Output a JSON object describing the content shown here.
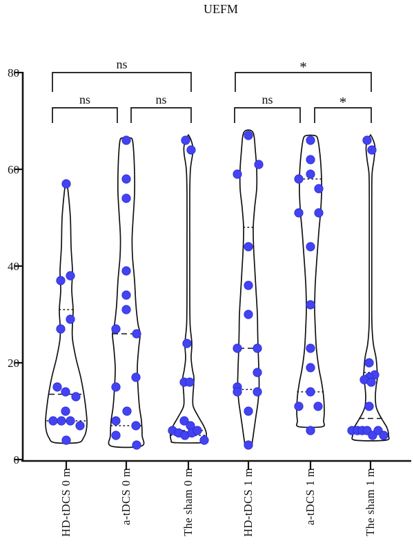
{
  "title": "UEFM",
  "chart_data": {
    "type": "violin",
    "title": "UEFM",
    "ylabel": "",
    "xlabel": "",
    "ylim": [
      0,
      80
    ],
    "y_ticks": [
      0,
      20,
      40,
      60,
      80
    ],
    "grid": false,
    "point_color": "#4343f2",
    "point_edge_color": "#2a2ad0",
    "line_color": "#111111",
    "categories": [
      "HD-tDCS 0 m",
      "a-tDCS 0 m",
      "The sham 0 m",
      "HD-tDCS 1 m",
      "a-tDCS 1 m",
      "The sham 1 m"
    ],
    "groups": [
      {
        "label": "HD-tDCS 0 m",
        "points": [
          [
            57,
            0
          ],
          [
            38,
            6
          ],
          [
            37,
            -8
          ],
          [
            29,
            6
          ],
          [
            27,
            -8
          ],
          [
            15,
            -13
          ],
          [
            14,
            -1
          ],
          [
            13,
            14
          ],
          [
            10,
            -1
          ],
          [
            8,
            -19
          ],
          [
            8,
            -7
          ],
          [
            8,
            6
          ],
          [
            7,
            20
          ],
          [
            4,
            0
          ]
        ],
        "lines": [
          {
            "v": 31,
            "style": "dotted",
            "hw": 10
          },
          {
            "v": 13.5,
            "style": "dashed",
            "hw": 25
          },
          {
            "v": 8,
            "style": "dotted",
            "hw": 28
          }
        ],
        "violin": [
          [
            57.5,
            0.5
          ],
          [
            55,
            3
          ],
          [
            50,
            6
          ],
          [
            44,
            7
          ],
          [
            39,
            9
          ],
          [
            35,
            8
          ],
          [
            31,
            10
          ],
          [
            28,
            9
          ],
          [
            25,
            9
          ],
          [
            21,
            14
          ],
          [
            17,
            21
          ],
          [
            14,
            25
          ],
          [
            11,
            28
          ],
          [
            8,
            30
          ],
          [
            6,
            29
          ],
          [
            4.5,
            25
          ],
          [
            3.5,
            17
          ]
        ]
      },
      {
        "label": "a-tDCS 0 m",
        "points": [
          [
            66,
            0
          ],
          [
            58,
            0
          ],
          [
            54,
            0
          ],
          [
            39,
            0
          ],
          [
            34,
            0
          ],
          [
            31,
            0
          ],
          [
            27,
            -15
          ],
          [
            26,
            15
          ],
          [
            17,
            14
          ],
          [
            15,
            -15
          ],
          [
            10,
            1
          ],
          [
            8,
            -15
          ],
          [
            7,
            14
          ],
          [
            5,
            -15
          ],
          [
            3,
            15
          ]
        ],
        "lines": [
          {
            "v": 26,
            "style": "dashed",
            "hw": 20
          },
          {
            "v": 7,
            "style": "dotted",
            "hw": 22
          }
        ],
        "violin": [
          [
            66.5,
            5
          ],
          [
            66,
            9
          ],
          [
            63,
            11
          ],
          [
            59,
            12
          ],
          [
            55,
            12
          ],
          [
            50,
            10
          ],
          [
            46,
            8.5
          ],
          [
            42,
            9
          ],
          [
            37,
            12
          ],
          [
            32,
            14
          ],
          [
            28,
            17
          ],
          [
            26,
            20
          ],
          [
            23,
            18
          ],
          [
            19,
            16
          ],
          [
            15,
            17
          ],
          [
            11,
            19
          ],
          [
            8,
            22
          ],
          [
            5,
            23
          ],
          [
            2.8,
            22
          ]
        ]
      },
      {
        "label": "The sham 0 m",
        "points": [
          [
            66,
            -4
          ],
          [
            64,
            4
          ],
          [
            24,
            -2
          ],
          [
            16,
            -6
          ],
          [
            16,
            2
          ],
          [
            8,
            -6
          ],
          [
            7,
            3
          ],
          [
            6,
            -23
          ],
          [
            5.5,
            -14
          ],
          [
            5,
            -5
          ],
          [
            5.5,
            5
          ],
          [
            6,
            13
          ],
          [
            4,
            23
          ]
        ],
        "lines": [
          {
            "v": 6,
            "style": "dashed",
            "hw": 26
          },
          {
            "v": 5,
            "style": "dotted",
            "hw": 26
          }
        ],
        "violin": [
          [
            67,
            0.5
          ],
          [
            66,
            4
          ],
          [
            64.5,
            6.5
          ],
          [
            63,
            6
          ],
          [
            60,
            3
          ],
          [
            55,
            2
          ],
          [
            45,
            2
          ],
          [
            35,
            2
          ],
          [
            28,
            2.5
          ],
          [
            24,
            5
          ],
          [
            21,
            4
          ],
          [
            18.5,
            6
          ],
          [
            17,
            8
          ],
          [
            15,
            7.5
          ],
          [
            13,
            6.5
          ],
          [
            11,
            7
          ],
          [
            9,
            14
          ],
          [
            7,
            22
          ],
          [
            5.5,
            26
          ],
          [
            4,
            25
          ],
          [
            3.5,
            20
          ]
        ]
      },
      {
        "label": "HD-tDCS 1 m",
        "points": [
          [
            67,
            0
          ],
          [
            61,
            15
          ],
          [
            59,
            -16
          ],
          [
            44,
            0
          ],
          [
            36,
            0
          ],
          [
            30,
            0
          ],
          [
            23,
            -16
          ],
          [
            23,
            13
          ],
          [
            18,
            13
          ],
          [
            15,
            -16
          ],
          [
            14,
            -16
          ],
          [
            14,
            13
          ],
          [
            10,
            0
          ],
          [
            3,
            0
          ]
        ],
        "lines": [
          {
            "v": 48,
            "style": "dotted",
            "hw": 7
          },
          {
            "v": 23,
            "style": "dashed",
            "hw": 14
          },
          {
            "v": 14.5,
            "style": "dotted",
            "hw": 15
          }
        ],
        "violin": [
          [
            68,
            4
          ],
          [
            67,
            8
          ],
          [
            64,
            10
          ],
          [
            60,
            12
          ],
          [
            56,
            12
          ],
          [
            52,
            9
          ],
          [
            48,
            7
          ],
          [
            44,
            7.5
          ],
          [
            40,
            9
          ],
          [
            35,
            11
          ],
          [
            30,
            13
          ],
          [
            26,
            13.5
          ],
          [
            23,
            14
          ],
          [
            19,
            15
          ],
          [
            15,
            15.5
          ],
          [
            12,
            14
          ],
          [
            9,
            11
          ],
          [
            6,
            8
          ],
          [
            4,
            6
          ],
          [
            2.8,
            4
          ]
        ]
      },
      {
        "label": "a-tDCS 1 m",
        "points": [
          [
            66,
            0
          ],
          [
            62,
            0
          ],
          [
            59,
            0
          ],
          [
            58,
            -17
          ],
          [
            56,
            12
          ],
          [
            51,
            -17
          ],
          [
            51,
            12
          ],
          [
            44,
            0
          ],
          [
            32,
            0
          ],
          [
            23,
            0
          ],
          [
            19,
            0
          ],
          [
            14,
            0
          ],
          [
            11,
            -17
          ],
          [
            11,
            11
          ],
          [
            6,
            0
          ]
        ],
        "lines": [
          {
            "v": 58,
            "style": "dotted",
            "hw": 16
          },
          {
            "v": 14,
            "style": "dotted",
            "hw": 19
          }
        ],
        "violin": [
          [
            67,
            5
          ],
          [
            66.5,
            10
          ],
          [
            64,
            13
          ],
          [
            61,
            15
          ],
          [
            58,
            16
          ],
          [
            55,
            16
          ],
          [
            51,
            14.5
          ],
          [
            47,
            12
          ],
          [
            43,
            10
          ],
          [
            39,
            8
          ],
          [
            35,
            6.5
          ],
          [
            31,
            6
          ],
          [
            27,
            7
          ],
          [
            23,
            8.5
          ],
          [
            19,
            12
          ],
          [
            16,
            16
          ],
          [
            13,
            19
          ],
          [
            10,
            20
          ],
          [
            8,
            19
          ],
          [
            6.8,
            17
          ]
        ]
      },
      {
        "label": "The sham 1 m",
        "points": [
          [
            66,
            -5
          ],
          [
            64,
            2
          ],
          [
            20,
            -2
          ],
          [
            17.5,
            6
          ],
          [
            17,
            -2
          ],
          [
            16.5,
            -9
          ],
          [
            16,
            1
          ],
          [
            11,
            -2
          ],
          [
            6,
            -27
          ],
          [
            6,
            -19
          ],
          [
            6,
            -12
          ],
          [
            6,
            -5
          ],
          [
            5,
            3
          ],
          [
            6,
            11
          ],
          [
            5,
            19
          ]
        ],
        "lines": [
          {
            "v": 18,
            "style": "dotted",
            "hw": 9
          },
          {
            "v": 8.5,
            "style": "dashed",
            "hw": 17
          }
        ],
        "violin": [
          [
            67,
            0.5
          ],
          [
            66,
            4
          ],
          [
            64.5,
            6.5
          ],
          [
            62,
            5
          ],
          [
            59,
            2.2
          ],
          [
            54,
            1.8
          ],
          [
            45,
            1.8
          ],
          [
            35,
            1.8
          ],
          [
            28,
            2
          ],
          [
            24,
            4
          ],
          [
            21,
            8
          ],
          [
            18.5,
            9.5
          ],
          [
            17,
            10
          ],
          [
            15,
            8
          ],
          [
            13,
            7
          ],
          [
            11,
            8
          ],
          [
            9.5,
            12
          ],
          [
            8,
            18
          ],
          [
            6.5,
            24
          ],
          [
            5,
            26
          ],
          [
            4,
            22
          ]
        ]
      }
    ],
    "significance": [
      {
        "a": 0,
        "b": 2,
        "label": "ns",
        "tier": 0,
        "ao": -20,
        "bo": 4
      },
      {
        "a": 0,
        "b": 1,
        "label": "ns",
        "tier": 1,
        "ao": -20,
        "bo": -13
      },
      {
        "a": 1,
        "b": 2,
        "label": "ns",
        "tier": 1,
        "ao": 7,
        "bo": 4
      },
      {
        "a": 3,
        "b": 5,
        "label": "*",
        "tier": 0,
        "ao": -19,
        "bo": 1
      },
      {
        "a": 3,
        "b": 4,
        "label": "ns",
        "tier": 1,
        "ao": -20,
        "bo": -15
      },
      {
        "a": 4,
        "b": 5,
        "label": "*",
        "tier": 1,
        "ao": 6,
        "bo": 1
      }
    ],
    "legend": null
  }
}
